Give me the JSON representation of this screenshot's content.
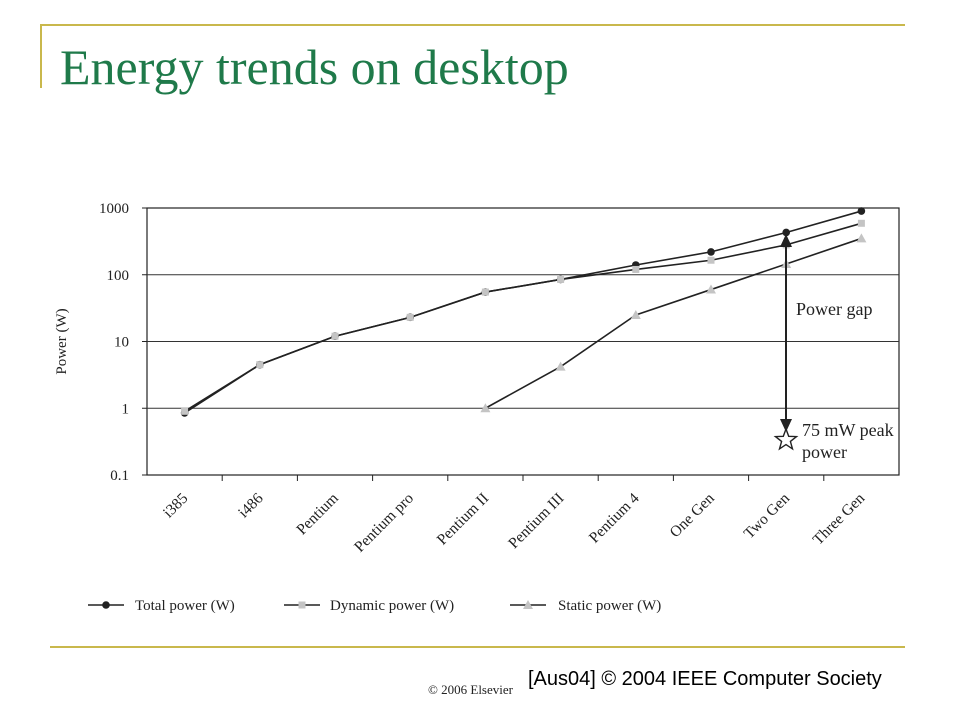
{
  "slide": {
    "title": "Energy trends on desktop",
    "copyright": "© 2006 Elsevier",
    "citation": "[Aus04] © 2004 IEEE Computer Society"
  },
  "colors": {
    "title": "#1f7a4a",
    "deco_lines": "#c9b84c",
    "total": "#222222",
    "dynamic": "#bdbdbd",
    "static": "#bdbdbd"
  },
  "chart_data": {
    "type": "line",
    "title": "",
    "xlabel": "",
    "ylabel": "Power (W)",
    "yscale": "log",
    "ylim": [
      0.1,
      1000
    ],
    "yticks": [
      "1000",
      "100",
      "10",
      "1",
      "0.1"
    ],
    "categories": [
      "i385",
      "i486",
      "Pentium",
      "Pentium pro",
      "Pentium II",
      "Pentium III",
      "Pentium 4",
      "One Gen",
      "Two Gen",
      "Three Gen"
    ],
    "series": [
      {
        "name": "Total power (W)",
        "marker": "circle",
        "values": [
          0.85,
          4.5,
          12,
          23,
          55,
          85,
          140,
          220,
          430,
          900
        ]
      },
      {
        "name": "Dynamic power (W)",
        "marker": "square",
        "values": [
          0.9,
          4.5,
          12,
          23,
          55,
          85,
          120,
          165,
          280,
          590
        ]
      },
      {
        "name": "Static power (W)",
        "marker": "triangle",
        "values": [
          null,
          null,
          null,
          null,
          1.0,
          4.2,
          25,
          60,
          145,
          350
        ]
      }
    ],
    "annotations": {
      "power_gap": "Power gap",
      "peak_power": "75 mW peak\npower"
    },
    "grid": true,
    "legend_position": "bottom"
  }
}
